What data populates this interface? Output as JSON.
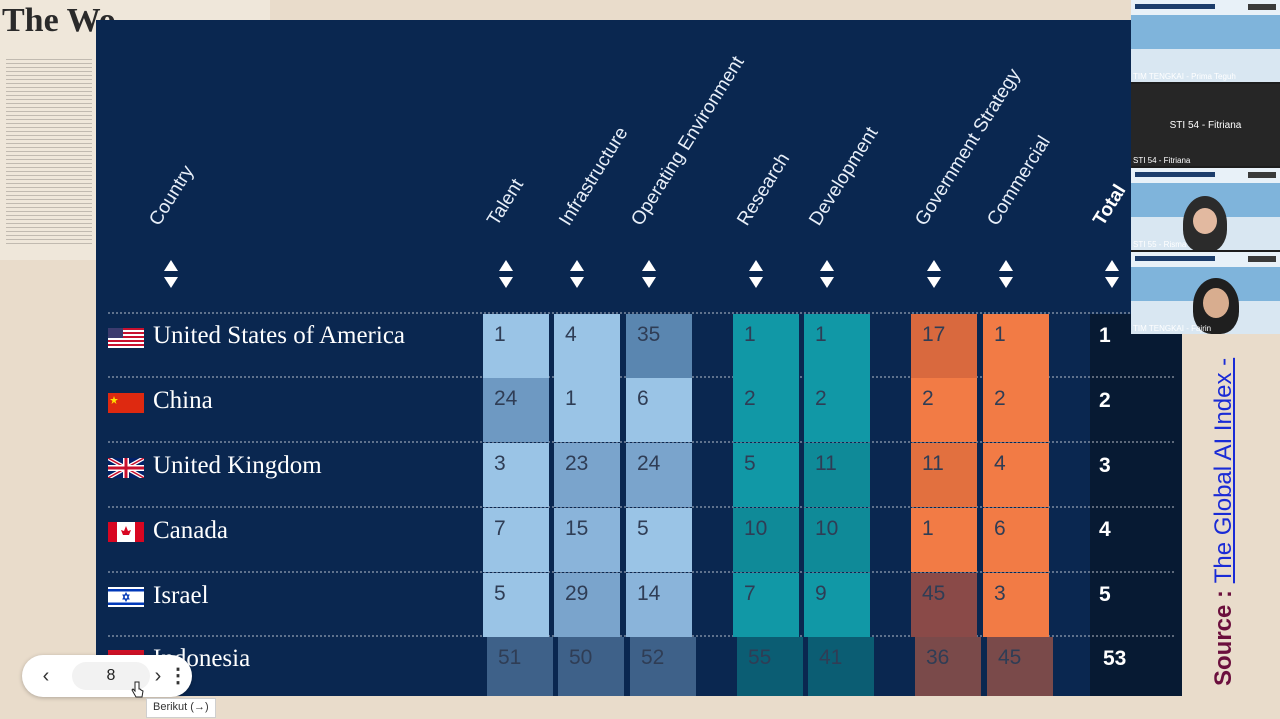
{
  "newspaper": {
    "masthead": "The Wo"
  },
  "table": {
    "headers": {
      "country": "Country",
      "talent": "Talent",
      "infrastructure": "Infrastructure",
      "operating_environment": "Operating Environment",
      "research": "Research",
      "development": "Development",
      "government_strategy": "Government Strategy",
      "commercial": "Commercial",
      "total": "Total"
    },
    "rows": [
      {
        "country": "United States of America",
        "talent": "1",
        "infrastructure": "4",
        "operating_environment": "35",
        "research": "1",
        "development": "1",
        "government_strategy": "17",
        "commercial": "1",
        "total": "1"
      },
      {
        "country": "China",
        "talent": "24",
        "infrastructure": "1",
        "operating_environment": "6",
        "research": "2",
        "development": "2",
        "government_strategy": "2",
        "commercial": "2",
        "total": "2"
      },
      {
        "country": "United Kingdom",
        "talent": "3",
        "infrastructure": "23",
        "operating_environment": "24",
        "research": "5",
        "development": "11",
        "government_strategy": "11",
        "commercial": "4",
        "total": "3"
      },
      {
        "country": "Canada",
        "talent": "7",
        "infrastructure": "15",
        "operating_environment": "5",
        "research": "10",
        "development": "10",
        "government_strategy": "1",
        "commercial": "6",
        "total": "4"
      },
      {
        "country": "Israel",
        "talent": "5",
        "infrastructure": "29",
        "operating_environment": "14",
        "research": "7",
        "development": "9",
        "government_strategy": "45",
        "commercial": "3",
        "total": "5"
      },
      {
        "country": "Indonesia",
        "talent": "51",
        "infrastructure": "50",
        "operating_environment": "52",
        "research": "55",
        "development": "41",
        "government_strategy": "36",
        "commercial": "45",
        "total": "53"
      }
    ],
    "colors": {
      "group1": "#9ac4e6",
      "group2": "#1198a6",
      "group3": "#f27b45"
    }
  },
  "source": {
    "label": "Source : ",
    "link": "The Global AI Index -"
  },
  "video_call": {
    "tiles": [
      {
        "name": "TIM TENGKAI - Prima Teguh"
      },
      {
        "name": "STI 54 - Fitriana",
        "center": "STI 54 - Fitriana"
      },
      {
        "name": "STI 55 - Risma"
      },
      {
        "name": "TIM TENGKAI - Fajrin"
      }
    ]
  },
  "pager": {
    "page": "8",
    "tooltip": "Berikut (→)"
  }
}
